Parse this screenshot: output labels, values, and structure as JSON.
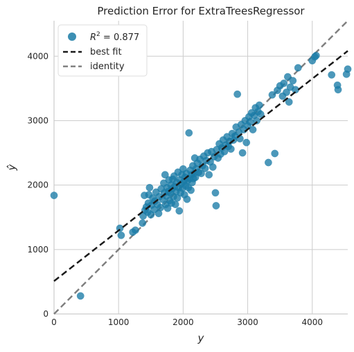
{
  "chart_data": {
    "type": "scatter",
    "title": "Prediction Error for ExtraTreesRegressor",
    "xlabel": "y",
    "ylabel": "ŷ",
    "xlim": [
      0,
      4550
    ],
    "ylim": [
      0,
      4550
    ],
    "xticks": [
      0,
      1000,
      2000,
      3000,
      4000
    ],
    "yticks": [
      0,
      1000,
      2000,
      3000,
      4000
    ],
    "grid": true,
    "legend": {
      "position": "top-left",
      "entries": [
        {
          "label_prefix": "R",
          "label_sup": "2",
          "label_suffix": " = 0.877",
          "kind": "marker"
        },
        {
          "label": "best fit",
          "kind": "dashed-line"
        },
        {
          "label": "identity",
          "kind": "dashed-line"
        }
      ]
    },
    "colors": {
      "points": "#1a7ba6",
      "best_fit": "#1a1a1a",
      "identity": "#808080",
      "grid": "#cccccc",
      "axes": "#cccccc"
    },
    "best_fit": {
      "intercept": 510,
      "slope": 0.785
    },
    "points": [
      [
        0,
        1840
      ],
      [
        410,
        280
      ],
      [
        1020,
        1330
      ],
      [
        1040,
        1220
      ],
      [
        1220,
        1270
      ],
      [
        1260,
        1300
      ],
      [
        1370,
        1410
      ],
      [
        1380,
        1520
      ],
      [
        1400,
        1840
      ],
      [
        1410,
        1610
      ],
      [
        1430,
        1660
      ],
      [
        1450,
        1580
      ],
      [
        1460,
        1720
      ],
      [
        1470,
        1850
      ],
      [
        1480,
        1960
      ],
      [
        1500,
        1540
      ],
      [
        1510,
        1690
      ],
      [
        1530,
        1800
      ],
      [
        1550,
        1620
      ],
      [
        1560,
        1750
      ],
      [
        1580,
        1890
      ],
      [
        1600,
        1700
      ],
      [
        1620,
        1560
      ],
      [
        1630,
        1820
      ],
      [
        1650,
        1650
      ],
      [
        1660,
        1940
      ],
      [
        1680,
        1780
      ],
      [
        1700,
        2030
      ],
      [
        1710,
        1880
      ],
      [
        1720,
        2160
      ],
      [
        1730,
        1700
      ],
      [
        1740,
        1830
      ],
      [
        1750,
        1960
      ],
      [
        1760,
        1640
      ],
      [
        1770,
        1900
      ],
      [
        1780,
        2080
      ],
      [
        1790,
        1760
      ],
      [
        1800,
        1880
      ],
      [
        1810,
        2000
      ],
      [
        1820,
        1720
      ],
      [
        1830,
        1940
      ],
      [
        1840,
        2090
      ],
      [
        1850,
        1820
      ],
      [
        1860,
        2140
      ],
      [
        1870,
        1980
      ],
      [
        1880,
        1700
      ],
      [
        1890,
        1900
      ],
      [
        1900,
        2040
      ],
      [
        1910,
        1800
      ],
      [
        1920,
        2200
      ],
      [
        1930,
        1960
      ],
      [
        1940,
        1600
      ],
      [
        1950,
        2080
      ],
      [
        1960,
        1880
      ],
      [
        1970,
        2020
      ],
      [
        1980,
        2160
      ],
      [
        1990,
        1950
      ],
      [
        2000,
        2250
      ],
      [
        2010,
        2050
      ],
      [
        2020,
        1850
      ],
      [
        2030,
        2120
      ],
      [
        2040,
        1990
      ],
      [
        2050,
        2180
      ],
      [
        2060,
        1780
      ],
      [
        2070,
        2070
      ],
      [
        2080,
        1960
      ],
      [
        2090,
        2810
      ],
      [
        2100,
        2100
      ],
      [
        2110,
        2230
      ],
      [
        2120,
        1920
      ],
      [
        2130,
        2160
      ],
      [
        2140,
        2040
      ],
      [
        2150,
        2300
      ],
      [
        2160,
        2100
      ],
      [
        2170,
        2180
      ],
      [
        2180,
        2420
      ],
      [
        2190,
        2120
      ],
      [
        2200,
        2250
      ],
      [
        2220,
        2340
      ],
      [
        2240,
        2200
      ],
      [
        2260,
        2400
      ],
      [
        2280,
        2180
      ],
      [
        2300,
        2300
      ],
      [
        2320,
        2450
      ],
      [
        2340,
        2260
      ],
      [
        2360,
        2380
      ],
      [
        2380,
        2500
      ],
      [
        2400,
        2160
      ],
      [
        2420,
        2360
      ],
      [
        2440,
        2520
      ],
      [
        2460,
        2280
      ],
      [
        2480,
        2440
      ],
      [
        2500,
        1880
      ],
      [
        2510,
        1680
      ],
      [
        2520,
        2550
      ],
      [
        2540,
        2420
      ],
      [
        2560,
        2640
      ],
      [
        2580,
        2480
      ],
      [
        2600,
        2580
      ],
      [
        2620,
        2700
      ],
      [
        2640,
        2520
      ],
      [
        2660,
        2620
      ],
      [
        2680,
        2750
      ],
      [
        2700,
        2600
      ],
      [
        2720,
        2680
      ],
      [
        2740,
        2560
      ],
      [
        2760,
        2800
      ],
      [
        2780,
        2700
      ],
      [
        2800,
        2760
      ],
      [
        2820,
        2900
      ],
      [
        2840,
        3410
      ],
      [
        2860,
        2820
      ],
      [
        2880,
        2720
      ],
      [
        2900,
        2940
      ],
      [
        2920,
        2500
      ],
      [
        2940,
        2860
      ],
      [
        2960,
        3000
      ],
      [
        2980,
        2660
      ],
      [
        3000,
        2920
      ],
      [
        3020,
        3060
      ],
      [
        3040,
        2980
      ],
      [
        3060,
        3120
      ],
      [
        3080,
        2860
      ],
      [
        3100,
        3080
      ],
      [
        3120,
        3200
      ],
      [
        3140,
        3000
      ],
      [
        3160,
        3140
      ],
      [
        3180,
        3240
      ],
      [
        3200,
        3100
      ],
      [
        3320,
        2350
      ],
      [
        3380,
        3400
      ],
      [
        3420,
        2490
      ],
      [
        3460,
        3470
      ],
      [
        3500,
        3540
      ],
      [
        3540,
        3380
      ],
      [
        3560,
        3580
      ],
      [
        3600,
        3440
      ],
      [
        3620,
        3680
      ],
      [
        3640,
        3290
      ],
      [
        3660,
        3520
      ],
      [
        3700,
        3620
      ],
      [
        3740,
        3480
      ],
      [
        3780,
        3820
      ],
      [
        4000,
        3930
      ],
      [
        4040,
        3990
      ],
      [
        4060,
        4010
      ],
      [
        4300,
        3710
      ],
      [
        4390,
        3550
      ],
      [
        4400,
        3480
      ],
      [
        4550,
        3800
      ],
      [
        4530,
        3720
      ]
    ]
  }
}
